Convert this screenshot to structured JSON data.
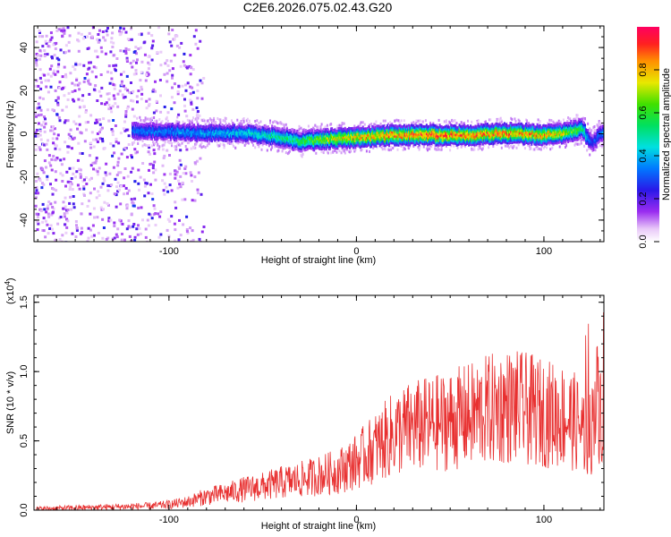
{
  "title": "C2E6.2026.075.02.43.G20",
  "chart_data": [
    {
      "type": "heatmap",
      "title": "C2E6.2026.075.02.43.G20",
      "xlabel": "Height of straight line (km)",
      "ylabel": "Frequency (Hz)",
      "xlim": [
        -172,
        132
      ],
      "ylim": [
        -50,
        50
      ],
      "xticks": [
        -100,
        0,
        100
      ],
      "xtick_labels": [
        "-100",
        "0",
        "100"
      ],
      "yticks": [
        -40,
        -20,
        0,
        20,
        40
      ],
      "ytick_labels": [
        "-40",
        "-20",
        "0",
        "20",
        "40"
      ],
      "colorbar": {
        "label": "Normalized spectral amplitude",
        "range": [
          0,
          1
        ],
        "ticks": [
          0.0,
          0.2,
          0.4,
          0.6,
          0.8
        ],
        "tick_labels": [
          "0.0",
          "0.2",
          "0.4",
          "0.6",
          "0.8"
        ]
      },
      "ridge": {
        "description_points_x": [
          -120,
          -80,
          -60,
          -40,
          -30,
          -20,
          0,
          20,
          40,
          60,
          80,
          100,
          110,
          120,
          125,
          132
        ],
        "center_freq": [
          2,
          1,
          1,
          -1,
          -3,
          -2,
          -1,
          0,
          0,
          0,
          1,
          0,
          1,
          3,
          -4,
          2
        ],
        "peak_amplitude": [
          0.35,
          0.4,
          0.45,
          0.55,
          0.6,
          0.7,
          0.85,
          0.9,
          0.95,
          0.9,
          0.9,
          0.85,
          0.75,
          0.6,
          0.3,
          0.4
        ]
      },
      "noise_region_x": [
        -172,
        -82
      ]
    },
    {
      "type": "line",
      "xlabel": "Height of straight line (km)",
      "ylabel": "SNR (10 * v/v)",
      "y_multiplier_label": "(x10",
      "y_multiplier_exp": "4",
      "xlim": [
        -172,
        132
      ],
      "ylim": [
        0,
        1.55
      ],
      "xticks": [
        -100,
        0,
        100
      ],
      "xtick_labels": [
        "-100",
        "0",
        "100"
      ],
      "yticks": [
        0.0,
        0.5,
        1.0,
        1.5
      ],
      "ytick_labels": [
        "0.0",
        "0.5",
        "1.0",
        "1.5"
      ],
      "color": "#e83030",
      "series": [
        {
          "name": "SNR",
          "x": [
            -172,
            -140,
            -110,
            -100,
            -90,
            -80,
            -70,
            -60,
            -50,
            -40,
            -30,
            -20,
            -10,
            0,
            5,
            10,
            15,
            20,
            30,
            40,
            50,
            60,
            70,
            80,
            90,
            100,
            110,
            115,
            120,
            125,
            128,
            132
          ],
          "values": [
            0.01,
            0.02,
            0.03,
            0.04,
            0.06,
            0.1,
            0.12,
            0.15,
            0.17,
            0.2,
            0.22,
            0.25,
            0.28,
            0.35,
            0.4,
            0.45,
            0.5,
            0.55,
            0.6,
            0.62,
            0.65,
            0.68,
            0.72,
            0.75,
            0.73,
            0.7,
            0.68,
            0.65,
            0.6,
            0.55,
            0.8,
            0.7
          ]
        }
      ]
    }
  ]
}
